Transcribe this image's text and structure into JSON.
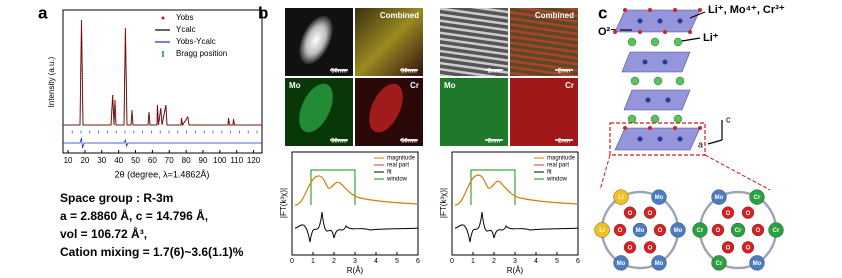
{
  "panel_a": {
    "label": "a",
    "y_label": "Intensity (a.u.)",
    "x_label": "2θ (degree, λ=1.4862Å)",
    "xlim": [
      7,
      125
    ],
    "xticks": [
      10,
      20,
      30,
      40,
      50,
      60,
      70,
      80,
      90,
      100,
      110,
      120
    ],
    "legend": [
      "Yobs",
      "Ycalc",
      "Yobs-Ycalc",
      "Bragg position"
    ],
    "legend_colors": [
      "#d01010",
      "#000000",
      "#1030c0",
      "#108080"
    ],
    "lines": [
      "Space group : R-3m",
      "a = 2.8860  Å,  c = 14.796  Å,",
      "vol = 106.72  Å³,",
      "Cation mixing = 1.7(6)~3.6(1.1)%"
    ]
  },
  "panel_b": {
    "label": "b",
    "eds_left": {
      "tiles": [
        "Combined",
        "Mo",
        "Cr"
      ],
      "scale": "50nm"
    },
    "eds_right": {
      "tiles": [
        "Combined",
        "Mo",
        "Cr"
      ],
      "scale": "2nm"
    },
    "exafs": {
      "y_label": "|FT(k³χ)|",
      "x_label": "R(Å)",
      "xlim": [
        0,
        6
      ],
      "xticks": [
        0,
        1,
        2,
        3,
        4,
        5,
        6
      ],
      "legend": [
        "magnitude",
        "real part",
        "fit",
        "window"
      ],
      "legend_colors": [
        "#d08000",
        "#e03030",
        "#000000",
        "#109010"
      ]
    }
  },
  "panel_c": {
    "label": "c",
    "site_label": "Li⁺, Mo⁴⁺, Cr³⁺",
    "oxygen_label": "O²⁻",
    "li_label": "Li⁺",
    "axis_c": "c",
    "axis_a": "a",
    "atom_colors": {
      "Li": "#f0c020",
      "Mo": "#4a7cc0",
      "Cr": "#2aa040",
      "O": "#d82020"
    },
    "ring1": {
      "outer": [
        "Li",
        "Mo",
        "Mo",
        "Mo",
        "Mo",
        "Li"
      ],
      "inner": [
        "O",
        "O",
        "O",
        "O",
        "O",
        "O"
      ],
      "center": "Mo"
    },
    "ring2": {
      "outer": [
        "Mo",
        "Cr",
        "Cr",
        "Mo",
        "Cr",
        "Cr"
      ],
      "inner": [
        "O",
        "O",
        "O",
        "O",
        "O",
        "O"
      ],
      "center": "Cr"
    }
  }
}
